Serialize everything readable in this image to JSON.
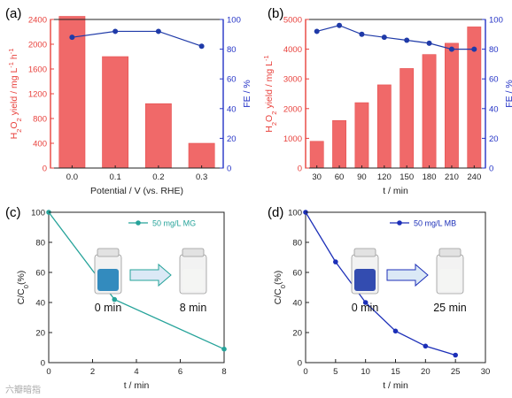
{
  "colors": {
    "bar": "#f06969",
    "bar_edge": "#e65050",
    "red_axis": "#e8413c",
    "blue_axis": "#2433c6",
    "fe_line": "#1f3aa8",
    "mg_line": "#26a39a",
    "mb_line": "#1c2fb8"
  },
  "watermark": "六瓣暗指",
  "chart_data": [
    {
      "panel": "(a)",
      "type": "bar+line",
      "categories": [
        "0.0",
        "0.1",
        "0.2",
        "0.3"
      ],
      "xlabel": "Potential / V (vs. RHE)",
      "series": [
        {
          "name": "H2O2 yield",
          "axis": "left",
          "type": "bar",
          "values": [
            2450,
            1800,
            1040,
            400
          ]
        },
        {
          "name": "FE",
          "axis": "right",
          "type": "line",
          "values": [
            88,
            92,
            92,
            82
          ]
        }
      ],
      "ylabel_left_parts": [
        "H",
        "2",
        "O",
        "2",
        " yield / mg L",
        "-1",
        " h",
        "-1"
      ],
      "ylabel_right": "FE / %",
      "ylim_left": [
        0,
        2400
      ],
      "yticks_left": [
        "0",
        "400",
        "800",
        "1200",
        "1600",
        "2000",
        "2400"
      ],
      "ylim_right": [
        0,
        100
      ],
      "yticks_right": [
        "0",
        "20",
        "40",
        "60",
        "80",
        "100"
      ]
    },
    {
      "panel": "(b)",
      "type": "bar+line",
      "categories": [
        "30",
        "60",
        "90",
        "120",
        "150",
        "180",
        "210",
        "240"
      ],
      "xlabel": "t / min",
      "series": [
        {
          "name": "H2O2 yield",
          "axis": "left",
          "type": "bar",
          "values": [
            900,
            1600,
            2200,
            2800,
            3350,
            3820,
            4200,
            4750
          ]
        },
        {
          "name": "FE",
          "axis": "right",
          "type": "line",
          "values": [
            92,
            96,
            90,
            88,
            86,
            84,
            80,
            80
          ]
        }
      ],
      "ylabel_left_parts": [
        "H",
        "2",
        "O",
        "2",
        " yield / mg L",
        "-1"
      ],
      "ylabel_right": "FE / %",
      "ylim_left": [
        0,
        5000
      ],
      "yticks_left": [
        "0",
        "1000",
        "2000",
        "3000",
        "4000",
        "5000"
      ],
      "ylim_right": [
        0,
        100
      ],
      "yticks_right": [
        "0",
        "20",
        "40",
        "60",
        "80",
        "100"
      ]
    },
    {
      "panel": "(c)",
      "type": "line",
      "x": [
        0,
        3,
        8
      ],
      "series": [
        {
          "name": "50 mg/L MG",
          "values": [
            100,
            42,
            9
          ]
        }
      ],
      "xlabel": "t / min",
      "ylabel_parts": [
        "C/C",
        "0",
        "(%)"
      ],
      "xlim": [
        0,
        8
      ],
      "xticks": [
        "0",
        "2",
        "4",
        "6",
        "8"
      ],
      "ylim": [
        0,
        100
      ],
      "yticks": [
        "0",
        "20",
        "40",
        "60",
        "80",
        "100"
      ],
      "inset": {
        "before": "0 min",
        "after": "8 min",
        "before_color": "#1e7fb8"
      },
      "legend": "top-right"
    },
    {
      "panel": "(d)",
      "type": "line",
      "x": [
        0,
        5,
        10,
        15,
        20,
        25
      ],
      "series": [
        {
          "name": "50 mg/L MB",
          "values": [
            100,
            67,
            40,
            21,
            11,
            5
          ]
        }
      ],
      "xlabel": "t / min",
      "ylabel_parts": [
        "C/C",
        "0",
        "(%)"
      ],
      "xlim": [
        0,
        30
      ],
      "xticks": [
        "0",
        "5",
        "10",
        "15",
        "20",
        "25",
        "30"
      ],
      "ylim": [
        0,
        100
      ],
      "yticks": [
        "0",
        "20",
        "40",
        "60",
        "80",
        "100"
      ],
      "inset": {
        "before": "0 min",
        "after": "25 min",
        "before_color": "#1e3aa8"
      },
      "legend": "top-right"
    }
  ]
}
